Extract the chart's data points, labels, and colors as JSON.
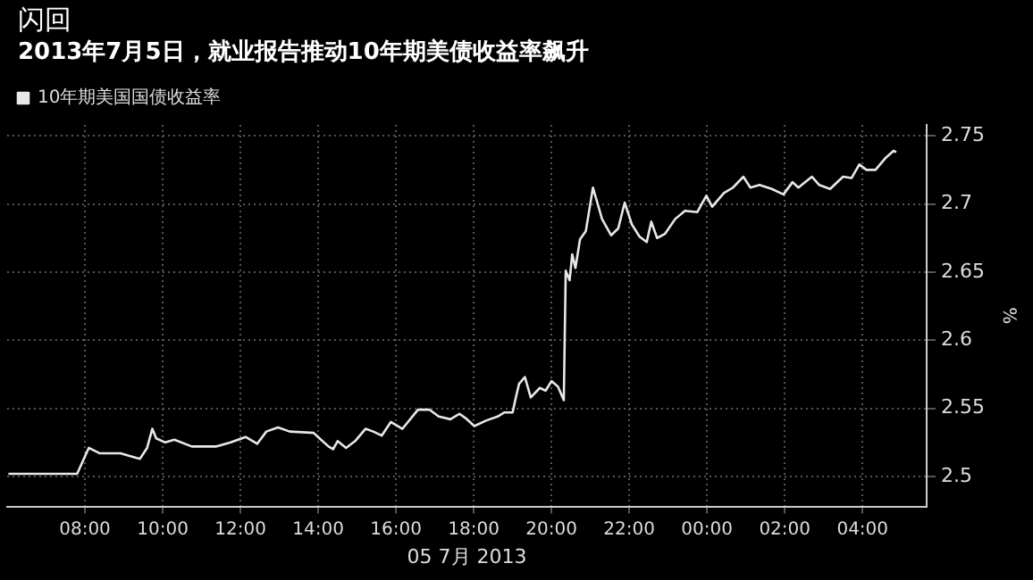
{
  "chart_data": {
    "type": "line",
    "title": "闪回",
    "subtitle": "2013年7月5日，就业报告推动10年期美债收益率飙升",
    "xlabel": "05 7月 2013",
    "ylabel": "%",
    "xlim": [
      "2013-07-05T06:00",
      "2013-07-06T05:39"
    ],
    "ylim": [
      2.478,
      2.758
    ],
    "xticks": [
      {
        "value": "2013-07-05T08:00",
        "label": "08:00"
      },
      {
        "value": "2013-07-05T10:00",
        "label": "10:00"
      },
      {
        "value": "2013-07-05T12:00",
        "label": "12:00"
      },
      {
        "value": "2013-07-05T14:00",
        "label": "14:00"
      },
      {
        "value": "2013-07-05T16:00",
        "label": "16:00"
      },
      {
        "value": "2013-07-05T18:00",
        "label": "18:00"
      },
      {
        "value": "2013-07-05T20:00",
        "label": "20:00"
      },
      {
        "value": "2013-07-05T22:00",
        "label": "22:00"
      },
      {
        "value": "2013-07-06T00:00",
        "label": "00:00"
      },
      {
        "value": "2013-07-06T02:00",
        "label": "02:00"
      },
      {
        "value": "2013-07-06T04:00",
        "label": "04:00"
      }
    ],
    "yticks": [
      2.5,
      2.55,
      2.6,
      2.65,
      2.7,
      2.75
    ],
    "grid": true,
    "legend": "top left",
    "marker": "none",
    "line_style": "solid",
    "series": [
      {
        "name": "10年期美国国债收益率",
        "color": "#e8e8e8",
        "x": [
          "2013-07-05T06:02",
          "2013-07-05T07:48",
          "2013-07-05T08:06",
          "2013-07-05T08:23",
          "2013-07-05T08:55",
          "2013-07-05T09:09",
          "2013-07-05T09:25",
          "2013-07-05T09:36",
          "2013-07-05T09:44",
          "2013-07-05T09:50",
          "2013-07-05T10:04",
          "2013-07-05T10:18",
          "2013-07-05T10:45",
          "2013-07-05T11:22",
          "2013-07-05T11:45",
          "2013-07-05T12:08",
          "2013-07-05T12:26",
          "2013-07-05T12:40",
          "2013-07-05T12:58",
          "2013-07-05T13:16",
          "2013-07-05T13:53",
          "2013-07-05T14:02",
          "2013-07-05T14:16",
          "2013-07-05T14:23",
          "2013-07-05T14:30",
          "2013-07-05T14:43",
          "2013-07-05T14:57",
          "2013-07-05T15:13",
          "2013-07-05T15:25",
          "2013-07-05T15:38",
          "2013-07-05T15:52",
          "2013-07-05T16:10",
          "2013-07-05T16:34",
          "2013-07-05T16:52",
          "2013-07-05T17:06",
          "2013-07-05T17:24",
          "2013-07-05T17:38",
          "2013-07-05T17:47",
          "2013-07-05T18:01",
          "2013-07-05T18:19",
          "2013-07-05T18:37",
          "2013-07-05T18:47",
          "2013-07-05T19:00",
          "2013-07-05T19:05",
          "2013-07-05T19:10",
          "2013-07-05T19:19",
          "2013-07-05T19:28",
          "2013-07-05T19:42",
          "2013-07-05T19:51",
          "2013-07-05T20:00",
          "2013-07-05T20:10",
          "2013-07-05T20:19",
          "2013-07-05T20:22",
          "2013-07-05T20:28",
          "2013-07-05T20:32",
          "2013-07-05T20:37",
          "2013-07-05T20:44",
          "2013-07-05T20:53",
          "2013-07-05T21:04",
          "2013-07-05T21:18",
          "2013-07-05T21:32",
          "2013-07-05T21:43",
          "2013-07-05T21:53",
          "2013-07-05T22:04",
          "2013-07-05T22:16",
          "2013-07-05T22:27",
          "2013-07-05T22:34",
          "2013-07-05T22:43",
          "2013-07-05T22:55",
          "2013-07-05T23:11",
          "2013-07-05T23:26",
          "2013-07-05T23:45",
          "2013-07-05T23:59",
          "2013-07-06T00:08",
          "2013-07-06T00:26",
          "2013-07-06T00:40",
          "2013-07-06T00:56",
          "2013-07-06T01:07",
          "2013-07-06T01:21",
          "2013-07-06T01:40",
          "2013-07-06T01:58",
          "2013-07-06T02:12",
          "2013-07-06T02:21",
          "2013-07-06T02:42",
          "2013-07-06T02:53",
          "2013-07-06T03:10",
          "2013-07-06T03:30",
          "2013-07-06T03:43",
          "2013-07-06T03:55",
          "2013-07-06T04:06",
          "2013-07-06T04:20",
          "2013-07-06T04:36",
          "2013-07-06T04:48",
          "2013-07-06T04:52"
        ],
        "values": [
          2.502,
          2.502,
          2.521,
          2.517,
          2.517,
          2.515,
          2.513,
          2.521,
          2.535,
          2.528,
          2.525,
          2.527,
          2.522,
          2.522,
          2.525,
          2.529,
          2.524,
          2.533,
          2.536,
          2.533,
          2.532,
          2.528,
          2.522,
          2.52,
          2.526,
          2.521,
          2.526,
          2.535,
          2.533,
          2.53,
          2.54,
          2.535,
          2.549,
          2.549,
          2.544,
          2.542,
          2.546,
          2.543,
          2.537,
          2.541,
          2.544,
          2.547,
          2.547,
          2.558,
          2.568,
          2.573,
          2.558,
          2.565,
          2.563,
          2.57,
          2.566,
          2.556,
          2.651,
          2.644,
          2.663,
          2.653,
          2.674,
          2.68,
          2.712,
          2.689,
          2.677,
          2.682,
          2.701,
          2.685,
          2.676,
          2.672,
          2.687,
          2.675,
          2.678,
          2.689,
          2.695,
          2.694,
          2.706,
          2.698,
          2.708,
          2.712,
          2.72,
          2.712,
          2.714,
          2.711,
          2.707,
          2.716,
          2.712,
          2.72,
          2.714,
          2.711,
          2.72,
          2.719,
          2.729,
          2.725,
          2.725,
          2.734,
          2.739,
          2.738
        ]
      }
    ]
  }
}
